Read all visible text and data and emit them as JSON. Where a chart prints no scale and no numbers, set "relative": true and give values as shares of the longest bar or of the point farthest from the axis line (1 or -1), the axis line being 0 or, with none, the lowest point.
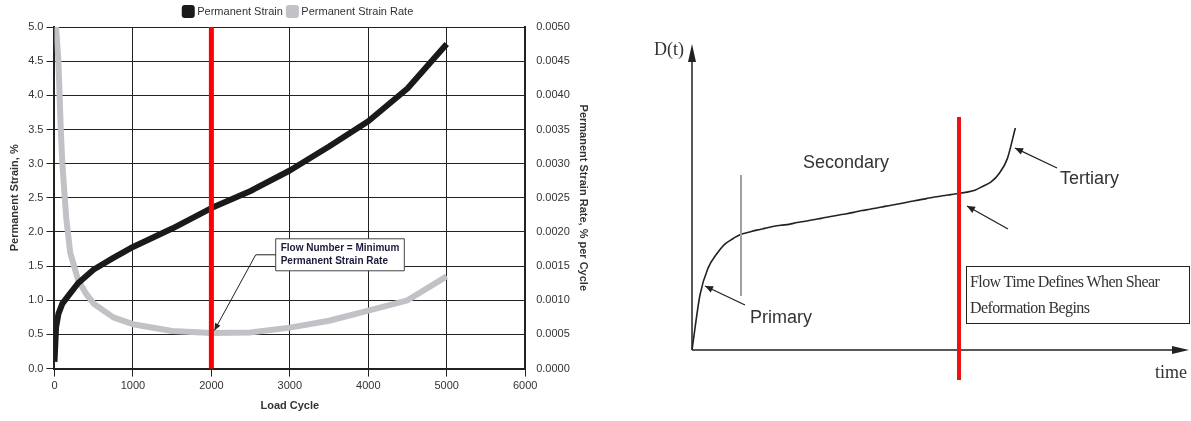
{
  "chart_data": [
    {
      "type": "line",
      "xlabel": "Load Cycle",
      "ylabel": "Permanent Strain, %",
      "y2label": "Permanent Strain Rate, % per Cycle",
      "xlim": [
        0,
        6000
      ],
      "xticks": [
        0,
        1000,
        2000,
        3000,
        4000,
        5000,
        6000
      ],
      "ylim": [
        0,
        5
      ],
      "yticks": [
        {
          "value": 0,
          "label": "0.0"
        },
        0.5,
        {
          "value": 1,
          "label": "1.0"
        },
        1.5,
        {
          "value": 2,
          "label": "2.0"
        },
        2.5,
        {
          "value": 3,
          "label": "3.0"
        },
        3.5,
        {
          "value": 4,
          "label": "4.0"
        },
        4.5,
        {
          "value": 5,
          "label": "5.0"
        }
      ],
      "y2lim": [
        0,
        0.005
      ],
      "y2ticks": [
        {
          "value": 0,
          "label": "0.0000"
        },
        {
          "value": 0.0005,
          "label": "0.0005"
        },
        {
          "value": 0.001,
          "label": "0.0010"
        },
        {
          "value": 0.0015,
          "label": "0.0015"
        },
        {
          "value": 0.002,
          "label": "0.0020"
        },
        {
          "value": 0.0025,
          "label": "0.0025"
        },
        {
          "value": 0.003,
          "label": "0.0030"
        },
        {
          "value": 0.0035,
          "label": "0.0035"
        },
        {
          "value": 0.004,
          "label": "0.0040"
        },
        {
          "value": 0.0045,
          "label": "0.0045"
        },
        {
          "value": 0.005,
          "label": "0.0050"
        }
      ],
      "series": [
        {
          "name": "Permanent Strain",
          "color": "#1a1a1a",
          "x": [
            0,
            20,
            50,
            100,
            200,
            300,
            500,
            750,
            1000,
            1500,
            2000,
            2500,
            3000,
            3500,
            4000,
            4500,
            5000
          ],
          "values": [
            0.1,
            0.6,
            0.8,
            0.95,
            1.1,
            1.25,
            1.45,
            1.62,
            1.78,
            2.05,
            2.35,
            2.6,
            2.9,
            3.25,
            3.62,
            4.1,
            4.75
          ]
        },
        {
          "name": "Permanent Strain Rate",
          "color": "#c0c2c6",
          "axis": "y2",
          "x": [
            20,
            50,
            80,
            100,
            150,
            200,
            300,
            400,
            500,
            750,
            1000,
            1500,
            2000,
            2500,
            3000,
            3500,
            4000,
            4500,
            5000
          ],
          "values": [
            0.005,
            0.0045,
            0.0035,
            0.003,
            0.0022,
            0.0017,
            0.0013,
            0.0011,
            0.00095,
            0.00075,
            0.00065,
            0.00055,
            0.00052,
            0.00053,
            0.0006,
            0.0007,
            0.00085,
            0.001,
            0.00135
          ]
        }
      ],
      "ref_lines": [
        {
          "axis": "x",
          "value": 2000,
          "color": "#ff0000"
        }
      ],
      "annotations": [
        {
          "text": "Flow Number = Minimum Permanent Strain Rate",
          "x": 2000,
          "y": 0.5
        }
      ],
      "grid": true,
      "legend": "top"
    },
    {
      "type": "line",
      "relative": true,
      "xlabel": "time",
      "ylabel": "D(t)",
      "categories": [
        null,
        null,
        null,
        null,
        null,
        null,
        null,
        null,
        null,
        null,
        null,
        null,
        null,
        null,
        null,
        null,
        null,
        null,
        null,
        null,
        null,
        null,
        null,
        null,
        null,
        null,
        null,
        null,
        null,
        null,
        null,
        null,
        null,
        null,
        null,
        null,
        null,
        null,
        null,
        null,
        null,
        null,
        null,
        null,
        null,
        null,
        null,
        null,
        null,
        null,
        null,
        null,
        null,
        null,
        null,
        null,
        null,
        null,
        null,
        null,
        null
      ],
      "series": [
        {
          "color": "#222222",
          "values": [
            0,
            0.25,
            0.37,
            0.43,
            0.475,
            0.5,
            0.52,
            0.53,
            0.54,
            0.548,
            0.556,
            0.562,
            0.566,
            0.574,
            0.58,
            0.587,
            0.593,
            0.6,
            0.607,
            0.613,
            0.62,
            0.628,
            0.634,
            0.641,
            0.648,
            0.654,
            0.661,
            0.669,
            0.675,
            0.682,
            0.689,
            0.695,
            0.7,
            0.705,
            0.711,
            0.72,
            0.738,
            0.757,
            0.795,
            0.861,
            1,
            null,
            null,
            null,
            null,
            null,
            null,
            null,
            null,
            null,
            null,
            null,
            null,
            null,
            null,
            null,
            null,
            null,
            null,
            null,
            null
          ]
        }
      ],
      "annotations": [
        "Secondary",
        "Primary",
        "Tertiary",
        "Flow Time Defines When Shear Deformation Begins"
      ]
    }
  ]
}
